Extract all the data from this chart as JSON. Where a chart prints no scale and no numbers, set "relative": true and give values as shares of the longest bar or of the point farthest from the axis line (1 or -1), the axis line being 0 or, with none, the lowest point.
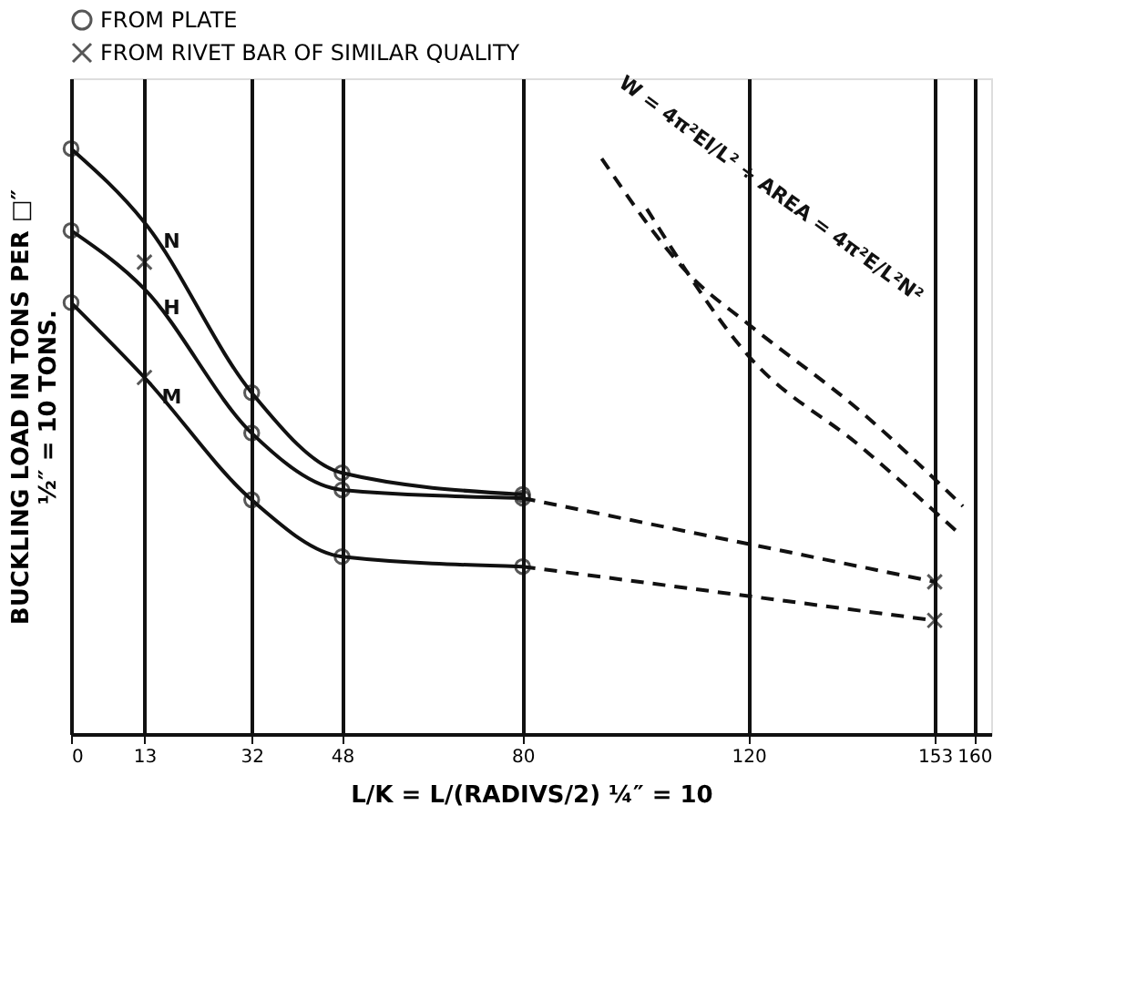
{
  "chart_data": {
    "type": "line",
    "relative": true,
    "xlabel": "L/K = L/(RADIVS/2)     ¼″ = 10",
    "ylabel": "BUCKLING LOAD IN TONS PER □″\n½″ = 10 TONS.",
    "xlim": [
      0,
      163
    ],
    "xticks": [
      0,
      13,
      32,
      48,
      80,
      120,
      153,
      160
    ],
    "grid": "x",
    "legend": "top left",
    "line_style": "solid",
    "marker": "none",
    "annotations": [
      "W = 4π²EI/L² ÷ AREA = 4π²E/L²N²"
    ],
    "series": [
      {
        "name": "N",
        "color": "#111111",
        "x": [
          0,
          13,
          32,
          48,
          80
        ],
        "values": [
          1.0,
          0.874,
          0.583,
          0.446,
          0.409
        ]
      },
      {
        "name": "H",
        "color": "#111111",
        "x": [
          0,
          13,
          32,
          48,
          80
        ],
        "values": [
          0.86,
          0.76,
          0.514,
          0.417,
          0.403
        ]
      },
      {
        "name": "M",
        "color": "#111111",
        "x": [
          0,
          13,
          32,
          48,
          80
        ],
        "values": [
          0.737,
          0.609,
          0.4,
          0.303,
          0.286
        ]
      },
      {
        "type": "line",
        "line_style": "dashed",
        "color": "#111111",
        "x": [
          80,
          153
        ],
        "values": [
          0.403,
          0.26
        ]
      },
      {
        "type": "line",
        "line_style": "dashed",
        "color": "#111111",
        "x": [
          80,
          153
        ],
        "values": [
          0.286,
          0.194
        ]
      },
      {
        "type": "line",
        "line_style": "dashed",
        "color": "#111111",
        "x": [
          94,
          110,
          120,
          140,
          158
        ],
        "values": [
          0.983,
          0.78,
          0.7,
          0.55,
          0.389
        ]
      },
      {
        "type": "line",
        "line_style": "dashed",
        "color": "#111111",
        "x": [
          102,
          120,
          140,
          157.6
        ],
        "values": [
          0.897,
          0.646,
          0.49,
          0.34
        ]
      },
      {
        "name": "FROM PLATE",
        "type": "scatter",
        "marker": "circle",
        "color": "#111111",
        "x": [
          0,
          32,
          48,
          80,
          0,
          32,
          48,
          80,
          0,
          32,
          48,
          80
        ],
        "values": [
          1.0,
          0.583,
          0.446,
          0.409,
          0.86,
          0.514,
          0.417,
          0.403,
          0.737,
          0.4,
          0.303,
          0.286
        ]
      },
      {
        "name": "FROM RIVET BAR OF SIMILAR QUALITY",
        "type": "scatter",
        "marker": "cross",
        "color": "#111111",
        "x": [
          13,
          13,
          153,
          153
        ],
        "values": [
          0.806,
          0.609,
          0.26,
          0.194
        ]
      }
    ]
  }
}
